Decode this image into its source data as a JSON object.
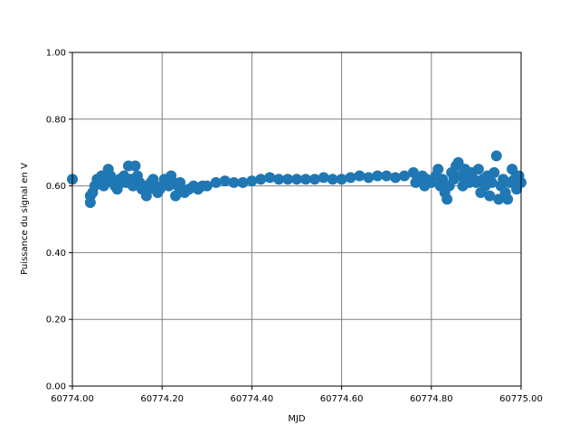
{
  "chart_data": {
    "type": "scatter",
    "xlabel": "MJD",
    "ylabel": "Puissance du signal en V",
    "color": "#1f77b4",
    "grid": true,
    "xlim": [
      60774.0,
      60775.0
    ],
    "xticks": [
      {
        "value": 60774.0,
        "label": "60774.00"
      },
      {
        "value": 60774.2,
        "label": "60774.20"
      },
      {
        "value": 60774.4,
        "label": "60774.40"
      },
      {
        "value": 60774.6,
        "label": "60774.60"
      },
      {
        "value": 60774.8,
        "label": "60774.80"
      },
      {
        "value": 60775.0,
        "label": "60775.00"
      }
    ],
    "ylim": [
      0,
      1
    ],
    "yticks": [
      {
        "value": 0,
        "label": "0.00"
      },
      {
        "value": 0.2,
        "label": "0.20"
      },
      {
        "value": 0.4,
        "label": "0.40"
      },
      {
        "value": 0.6,
        "label": "0.60"
      },
      {
        "value": 0.8,
        "label": "0.80"
      },
      {
        "value": 1,
        "label": "1.00"
      }
    ],
    "x": [
      60774.0,
      60774.04,
      60774.04,
      60774.045,
      60774.05,
      60774.055,
      60774.06,
      60774.065,
      60774.07,
      60774.075,
      60774.08,
      60774.085,
      60774.09,
      60774.095,
      60774.1,
      60774.105,
      60774.11,
      60774.115,
      60774.12,
      60774.125,
      60774.13,
      60774.135,
      60774.14,
      60774.145,
      60774.15,
      60774.155,
      60774.16,
      60774.165,
      60774.17,
      60774.175,
      60774.18,
      60774.185,
      60774.19,
      60774.195,
      60774.2,
      60774.205,
      60774.21,
      60774.215,
      60774.22,
      60774.225,
      60774.23,
      60774.235,
      60774.24,
      60774.245,
      60774.25,
      60774.26,
      60774.27,
      60774.28,
      60774.29,
      60774.3,
      60774.32,
      60774.34,
      60774.36,
      60774.38,
      60774.4,
      60774.42,
      60774.44,
      60774.46,
      60774.48,
      60774.5,
      60774.52,
      60774.54,
      60774.56,
      60774.58,
      60774.6,
      60774.62,
      60774.64,
      60774.66,
      60774.68,
      60774.7,
      60774.72,
      60774.74,
      60774.76,
      60774.765,
      60774.77,
      60774.78,
      60774.785,
      60774.79,
      60774.8,
      60774.81,
      60774.815,
      60774.82,
      60774.825,
      60774.83,
      60774.835,
      60774.84,
      60774.845,
      60774.85,
      60774.855,
      60774.86,
      60774.865,
      60774.87,
      60774.875,
      60774.88,
      60774.885,
      60774.89,
      60774.895,
      60774.9,
      60774.905,
      60774.91,
      60774.915,
      60774.92,
      60774.925,
      60774.93,
      60774.935,
      60774.94,
      60774.945,
      60774.95,
      60774.955,
      60774.96,
      60774.965,
      60774.97,
      60774.975,
      60774.98,
      60774.985,
      60774.99,
      60774.995,
      60775.0
    ],
    "values": [
      0.62,
      0.57,
      0.55,
      0.58,
      0.6,
      0.62,
      0.61,
      0.63,
      0.6,
      0.62,
      0.65,
      0.63,
      0.61,
      0.6,
      0.59,
      0.62,
      0.61,
      0.63,
      0.61,
      0.66,
      0.62,
      0.6,
      0.66,
      0.63,
      0.61,
      0.59,
      0.6,
      0.57,
      0.59,
      0.61,
      0.62,
      0.6,
      0.58,
      0.59,
      0.6,
      0.62,
      0.61,
      0.6,
      0.63,
      0.61,
      0.57,
      0.6,
      0.61,
      0.59,
      0.58,
      0.59,
      0.6,
      0.59,
      0.6,
      0.6,
      0.61,
      0.615,
      0.61,
      0.61,
      0.615,
      0.62,
      0.625,
      0.62,
      0.62,
      0.62,
      0.62,
      0.62,
      0.625,
      0.62,
      0.62,
      0.625,
      0.63,
      0.625,
      0.63,
      0.63,
      0.625,
      0.63,
      0.64,
      0.61,
      0.62,
      0.63,
      0.6,
      0.62,
      0.61,
      0.63,
      0.65,
      0.6,
      0.62,
      0.58,
      0.56,
      0.6,
      0.64,
      0.62,
      0.66,
      0.67,
      0.63,
      0.6,
      0.65,
      0.62,
      0.61,
      0.64,
      0.62,
      0.61,
      0.65,
      0.58,
      0.62,
      0.6,
      0.63,
      0.57,
      0.61,
      0.64,
      0.69,
      0.56,
      0.6,
      0.62,
      0.58,
      0.56,
      0.61,
      0.65,
      0.62,
      0.59,
      0.63,
      0.61
    ]
  }
}
